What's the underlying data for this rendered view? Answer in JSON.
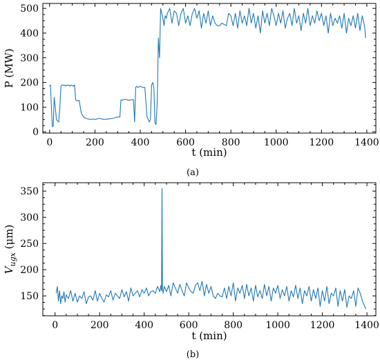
{
  "figure": {
    "panel_a_label": "(a)",
    "panel_b_label": "(b)"
  },
  "colors": {
    "series": "#1f77b4"
  },
  "chart_data": [
    {
      "type": "line",
      "panel": "(a)",
      "title": "",
      "xlabel": "t (min)",
      "ylabel": "P (MW)",
      "xlim": [
        -30,
        1440
      ],
      "ylim": [
        -5,
        520
      ],
      "xticks": [
        0,
        200,
        400,
        600,
        800,
        1000,
        1200,
        1400
      ],
      "yticks": [
        0,
        100,
        200,
        300,
        400,
        500
      ],
      "grid": false,
      "series": [
        {
          "x": [
            0,
            4,
            6,
            10,
            12,
            16,
            20,
            25,
            30,
            35,
            40,
            45,
            50,
            55,
            60,
            65,
            70,
            75,
            80,
            85,
            90,
            95,
            100,
            105,
            110,
            115,
            120,
            130,
            140,
            150,
            160,
            170,
            180,
            190,
            200,
            220,
            240,
            260,
            280,
            300,
            310,
            315,
            320,
            325,
            330,
            340,
            350,
            360,
            370,
            375,
            380,
            385,
            390,
            395,
            400,
            410,
            420,
            430,
            440,
            445,
            450,
            455,
            460,
            465,
            470,
            475,
            480,
            485,
            490,
            495,
            500,
            505,
            510,
            515,
            520,
            530,
            540,
            550,
            560,
            570,
            580,
            590,
            600,
            610,
            620,
            630,
            640,
            650,
            660,
            670,
            680,
            690,
            700,
            710,
            720,
            730,
            740,
            750,
            760,
            770,
            780,
            790,
            800,
            810,
            820,
            830,
            840,
            850,
            860,
            870,
            880,
            890,
            900,
            910,
            920,
            930,
            940,
            950,
            960,
            970,
            980,
            990,
            1000,
            1010,
            1020,
            1030,
            1040,
            1050,
            1060,
            1070,
            1080,
            1090,
            1100,
            1110,
            1120,
            1130,
            1140,
            1150,
            1160,
            1170,
            1180,
            1190,
            1200,
            1210,
            1220,
            1230,
            1240,
            1250,
            1260,
            1270,
            1280,
            1290,
            1300,
            1310,
            1320,
            1330,
            1340,
            1350,
            1360,
            1370,
            1380,
            1390,
            1395
          ],
          "y": [
            185,
            190,
            140,
            60,
            20,
            25,
            140,
            100,
            50,
            45,
            40,
            100,
            185,
            190,
            188,
            190,
            185,
            190,
            188,
            190,
            185,
            190,
            188,
            185,
            190,
            130,
            125,
            128,
            75,
            60,
            55,
            52,
            50,
            52,
            50,
            55,
            50,
            52,
            55,
            60,
            60,
            130,
            128,
            130,
            132,
            130,
            128,
            130,
            130,
            40,
            180,
            185,
            180,
            182,
            185,
            180,
            180,
            60,
            40,
            50,
            190,
            200,
            180,
            35,
            30,
            120,
            380,
            300,
            500,
            480,
            460,
            430,
            470,
            460,
            480,
            500,
            440,
            490,
            480,
            430,
            480,
            500,
            440,
            470,
            430,
            480,
            500,
            460,
            490,
            420,
            480,
            440,
            490,
            430,
            470,
            440,
            430,
            430,
            440,
            435,
            430,
            480,
            470,
            430,
            480,
            420,
            490,
            440,
            470,
            430,
            500,
            440,
            480,
            420,
            470,
            400,
            490,
            440,
            480,
            430,
            500,
            470,
            430,
            480,
            440,
            490,
            420,
            460,
            480,
            430,
            500,
            440,
            470,
            410,
            480,
            440,
            500,
            430,
            470,
            440,
            490,
            450,
            480,
            430,
            470,
            400,
            480,
            430,
            460,
            440,
            470,
            420,
            480,
            400,
            460,
            430,
            470,
            420,
            480,
            410,
            470,
            430,
            380
          ]
        }
      ]
    },
    {
      "type": "line",
      "panel": "(b)",
      "title": "",
      "xlabel": "t (min)",
      "ylabel_main": "V",
      "ylabel_sub": "ugx",
      "ylabel_unit": " (μm)",
      "xlim": [
        -55,
        1440
      ],
      "ylim": [
        112,
        366
      ],
      "xticks": [
        0,
        200,
        400,
        600,
        800,
        1000,
        1200,
        1400
      ],
      "yticks": [
        150,
        200,
        250,
        300,
        350
      ],
      "grid": false,
      "series": [
        {
          "x": [
            5,
            10,
            15,
            20,
            25,
            30,
            35,
            40,
            45,
            50,
            60,
            70,
            80,
            90,
            100,
            110,
            120,
            130,
            140,
            150,
            160,
            170,
            180,
            190,
            200,
            210,
            220,
            230,
            240,
            250,
            260,
            270,
            280,
            290,
            300,
            310,
            320,
            330,
            340,
            350,
            360,
            370,
            380,
            390,
            400,
            410,
            420,
            430,
            440,
            450,
            460,
            470,
            475,
            478,
            480,
            482,
            485,
            490,
            500,
            510,
            520,
            530,
            540,
            550,
            560,
            570,
            580,
            590,
            600,
            610,
            620,
            630,
            640,
            650,
            660,
            670,
            680,
            690,
            700,
            710,
            720,
            730,
            740,
            750,
            760,
            770,
            780,
            790,
            800,
            810,
            820,
            830,
            840,
            850,
            860,
            870,
            880,
            890,
            900,
            910,
            920,
            930,
            940,
            950,
            960,
            970,
            980,
            990,
            1000,
            1010,
            1020,
            1030,
            1040,
            1050,
            1060,
            1070,
            1080,
            1090,
            1100,
            1110,
            1120,
            1130,
            1140,
            1150,
            1160,
            1170,
            1180,
            1190,
            1200,
            1210,
            1220,
            1230,
            1240,
            1250,
            1260,
            1270,
            1280,
            1290,
            1300,
            1310,
            1320,
            1330,
            1340,
            1350,
            1360,
            1370,
            1380,
            1390,
            1395
          ],
          "y": [
            155,
            168,
            140,
            160,
            135,
            150,
            145,
            158,
            138,
            152,
            145,
            160,
            140,
            155,
            138,
            150,
            145,
            158,
            135,
            148,
            150,
            142,
            160,
            140,
            155,
            145,
            138,
            152,
            148,
            160,
            142,
            155,
            150,
            145,
            162,
            148,
            158,
            140,
            165,
            150,
            155,
            160,
            148,
            162,
            155,
            165,
            150,
            158,
            160,
            155,
            168,
            158,
            170,
            160,
            355,
            165,
            155,
            168,
            158,
            170,
            150,
            175,
            165,
            155,
            172,
            160,
            150,
            175,
            165,
            158,
            155,
            170,
            175,
            160,
            178,
            150,
            172,
            155,
            168,
            150,
            145,
            155,
            150,
            148,
            165,
            145,
            168,
            150,
            175,
            140,
            165,
            155,
            170,
            145,
            172,
            150,
            165,
            140,
            170,
            148,
            160,
            145,
            172,
            150,
            168,
            140,
            165,
            155,
            170,
            145,
            162,
            150,
            168,
            140,
            160,
            148,
            170,
            145,
            165,
            135,
            160,
            150,
            168,
            140,
            162,
            145,
            165,
            130,
            160,
            140,
            168,
            135,
            155,
            150,
            165,
            130,
            160,
            140,
            162,
            128,
            150,
            145,
            160,
            130,
            165,
            155,
            140,
            130,
            125
          ]
        }
      ]
    }
  ]
}
